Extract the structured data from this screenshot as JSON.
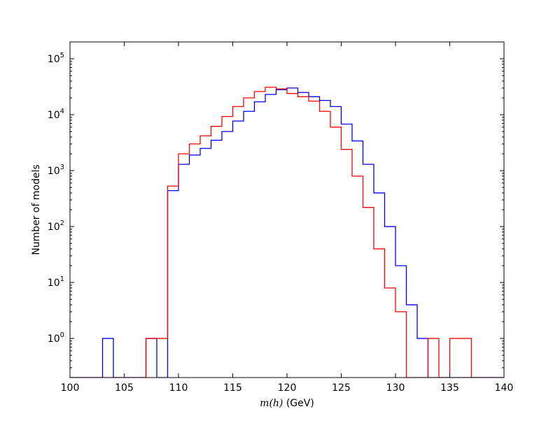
{
  "chart_data": {
    "type": "histogram",
    "xlabel": "m(h) (GeV)",
    "xlabel_math": "m(h)",
    "xlabel_unit": " (GeV)",
    "ylabel": "Number of models",
    "xlim": [
      100,
      140
    ],
    "ylim": [
      0.2,
      200000
    ],
    "yscale": "log",
    "x_ticks": [
      100,
      105,
      110,
      115,
      120,
      125,
      130,
      135,
      140
    ],
    "y_ticks": [
      {
        "base": "10",
        "exp": "0",
        "value": 1
      },
      {
        "base": "10",
        "exp": "1",
        "value": 10
      },
      {
        "base": "10",
        "exp": "2",
        "value": 100
      },
      {
        "base": "10",
        "exp": "3",
        "value": 1000
      },
      {
        "base": "10",
        "exp": "4",
        "value": 10000
      },
      {
        "base": "10",
        "exp": "5",
        "value": 100000
      }
    ],
    "bin_width": 1,
    "grid": false,
    "series": [
      {
        "color": "#0000ff",
        "bins": [
          [
            103,
            1
          ],
          [
            107,
            1
          ],
          [
            109,
            440
          ],
          [
            110,
            1300
          ],
          [
            111,
            1900
          ],
          [
            112,
            2500
          ],
          [
            113,
            3500
          ],
          [
            114,
            5000
          ],
          [
            115,
            7700
          ],
          [
            116,
            11500
          ],
          [
            117,
            17000
          ],
          [
            118,
            23000
          ],
          [
            119,
            28000
          ],
          [
            120,
            30000
          ],
          [
            121,
            25000
          ],
          [
            122,
            21000
          ],
          [
            123,
            18000
          ],
          [
            124,
            14000
          ],
          [
            125,
            6800
          ],
          [
            126,
            3400
          ],
          [
            127,
            1300
          ],
          [
            128,
            400
          ],
          [
            129,
            100
          ],
          [
            130,
            20
          ],
          [
            131,
            4
          ],
          [
            132,
            1
          ]
        ]
      },
      {
        "color": "#ff0000",
        "bins": [
          [
            107,
            1
          ],
          [
            108,
            1
          ],
          [
            109,
            530
          ],
          [
            110,
            2000
          ],
          [
            111,
            3000
          ],
          [
            112,
            4200
          ],
          [
            113,
            6200
          ],
          [
            114,
            9300
          ],
          [
            115,
            14000
          ],
          [
            116,
            20000
          ],
          [
            117,
            26000
          ],
          [
            118,
            31000
          ],
          [
            119,
            29000
          ],
          [
            120,
            24000
          ],
          [
            121,
            21000
          ],
          [
            122,
            17500
          ],
          [
            123,
            11500
          ],
          [
            124,
            6000
          ],
          [
            125,
            2400
          ],
          [
            126,
            800
          ],
          [
            127,
            220
          ],
          [
            128,
            40
          ],
          [
            129,
            8
          ],
          [
            130,
            3
          ],
          [
            133,
            1
          ],
          [
            135,
            1
          ],
          [
            136,
            1
          ]
        ]
      }
    ]
  }
}
